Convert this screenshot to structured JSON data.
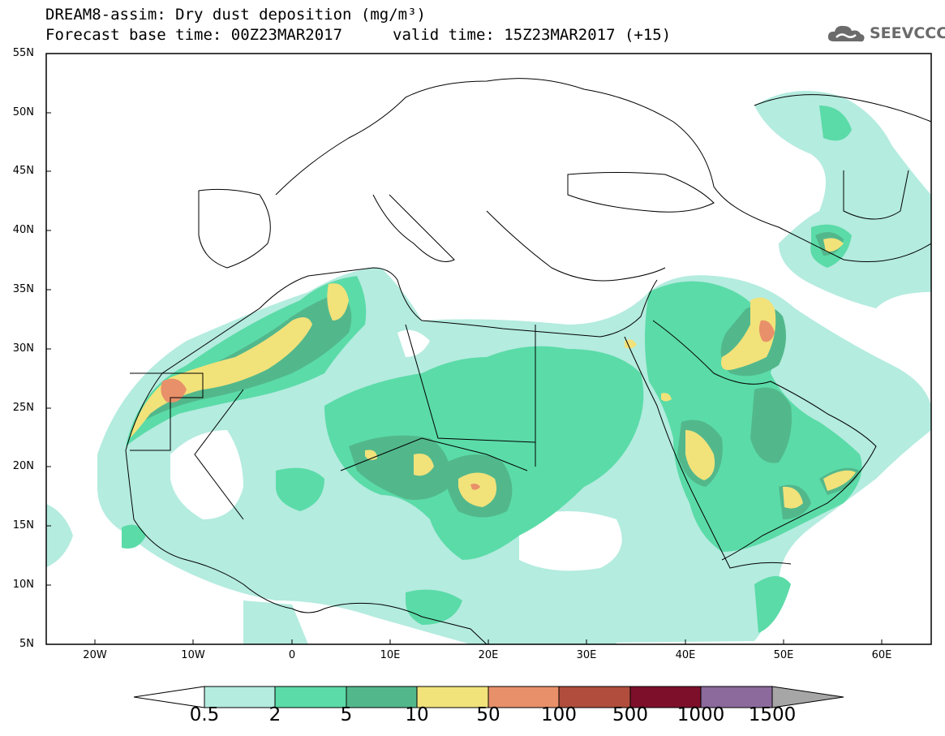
{
  "header": {
    "title_line1": "DREAM8-assim: Dry dust deposition (mg/m³)",
    "title_line2": "Forecast base time: 00Z23MAR2017",
    "valid_time": "valid time: 15Z23MAR2017 (+15)",
    "logo_text": "SEEVCCC",
    "logo_icon": "cloud-icon"
  },
  "map": {
    "lat_range": [
      5,
      55
    ],
    "lon_range": [
      -25,
      65
    ],
    "lat_ticks": [
      "55N",
      "50N",
      "45N",
      "40N",
      "35N",
      "30N",
      "25N",
      "20N",
      "15N",
      "10N",
      "5N"
    ],
    "lon_ticks": [
      "20W",
      "10W",
      "0",
      "10E",
      "20E",
      "30E",
      "40E",
      "50E",
      "60E"
    ],
    "variable": "Dry dust deposition",
    "units": "mg/m³"
  },
  "colorbar": {
    "labels": [
      "0.5",
      "2",
      "5",
      "10",
      "50",
      "100",
      "500",
      "1000",
      "1500"
    ],
    "colors": [
      "#b4ecdf",
      "#5bdba8",
      "#52b88c",
      "#f2e27a",
      "#e8906a",
      "#b04d3c",
      "#7d0f2a",
      "#8c6a9c",
      "#a6a6a6"
    ]
  }
}
